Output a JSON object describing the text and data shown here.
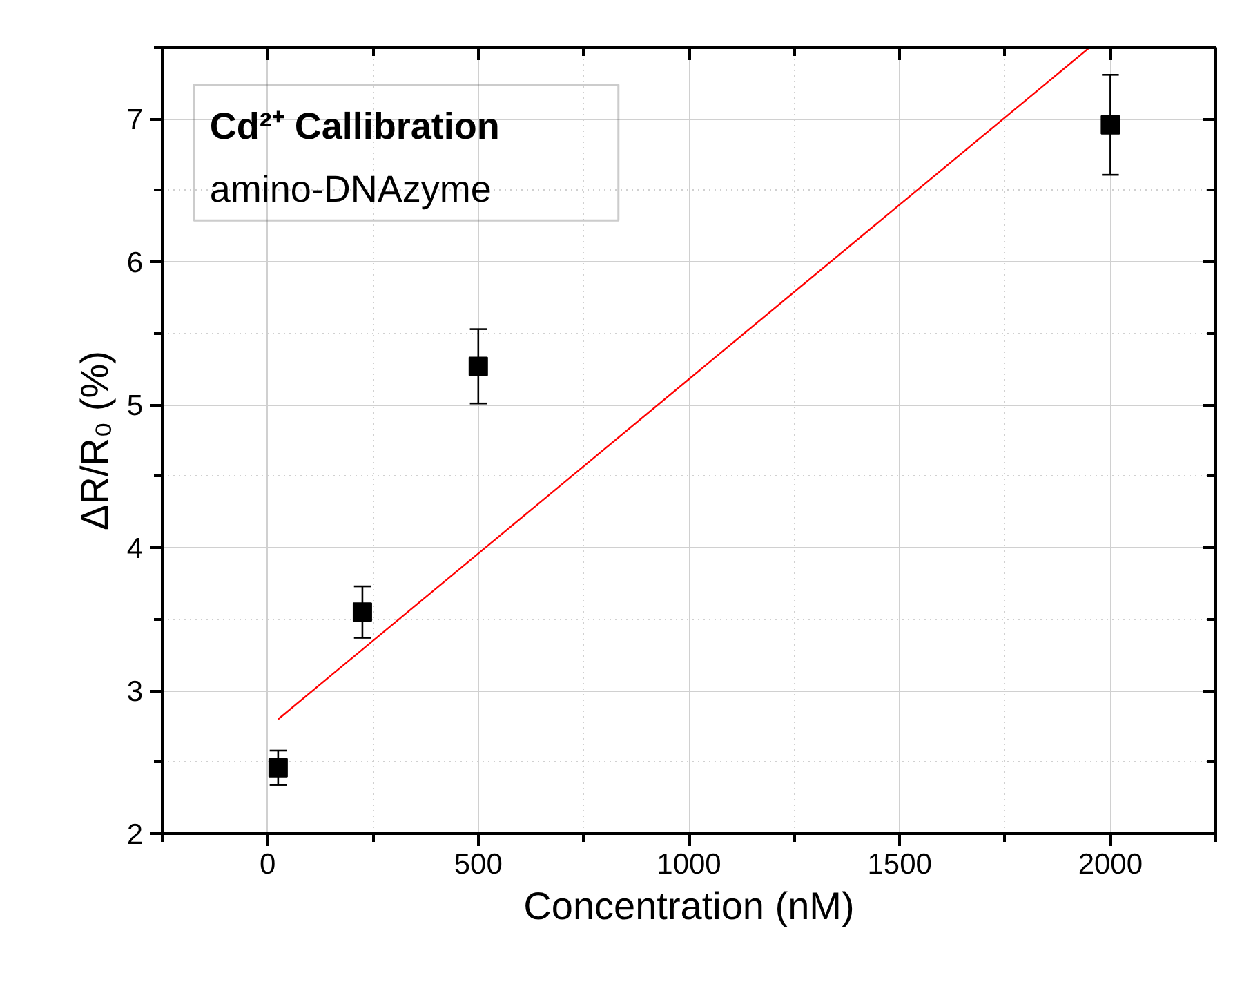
{
  "chart_data": {
    "type": "scatter",
    "title": "Cd²⁺ Callibration",
    "subtitle": "amino-DNAzyme",
    "xlabel": "Concentration (nM)",
    "ylabel": "ΔR/R₀ (%)",
    "x": [
      25,
      225,
      500,
      2000
    ],
    "series": [
      {
        "color": "#000000",
        "values": [
          2.46,
          3.55,
          5.27,
          6.96
        ],
        "errors": [
          0.12,
          0.18,
          0.26,
          0.35
        ],
        "marker": "square"
      },
      {
        "type": "line",
        "color": "#ff0000",
        "x": [
          25,
          1950
        ],
        "values": [
          2.8,
          7.5
        ],
        "line_style": "solid"
      }
    ],
    "xlim": [
      -250,
      2250
    ],
    "ylim": [
      2,
      7.5
    ],
    "xticks": [
      {
        "value": -250,
        "label": null
      },
      0,
      {
        "value": 250,
        "label": null
      },
      500,
      {
        "value": 750,
        "label": null
      },
      1000,
      {
        "value": 1250,
        "label": null
      },
      1500,
      {
        "value": 1750,
        "label": null
      },
      2000,
      {
        "value": 2250,
        "label": null
      }
    ],
    "yticks": [
      2,
      {
        "value": 2.5,
        "label": null
      },
      3,
      {
        "value": 3.5,
        "label": null
      },
      4,
      {
        "value": 4.5,
        "label": null
      },
      5,
      {
        "value": 5.5,
        "label": null
      },
      6,
      {
        "value": 6.5,
        "label": null
      },
      7,
      {
        "value": 7.5,
        "label": null
      }
    ],
    "grid": true
  }
}
